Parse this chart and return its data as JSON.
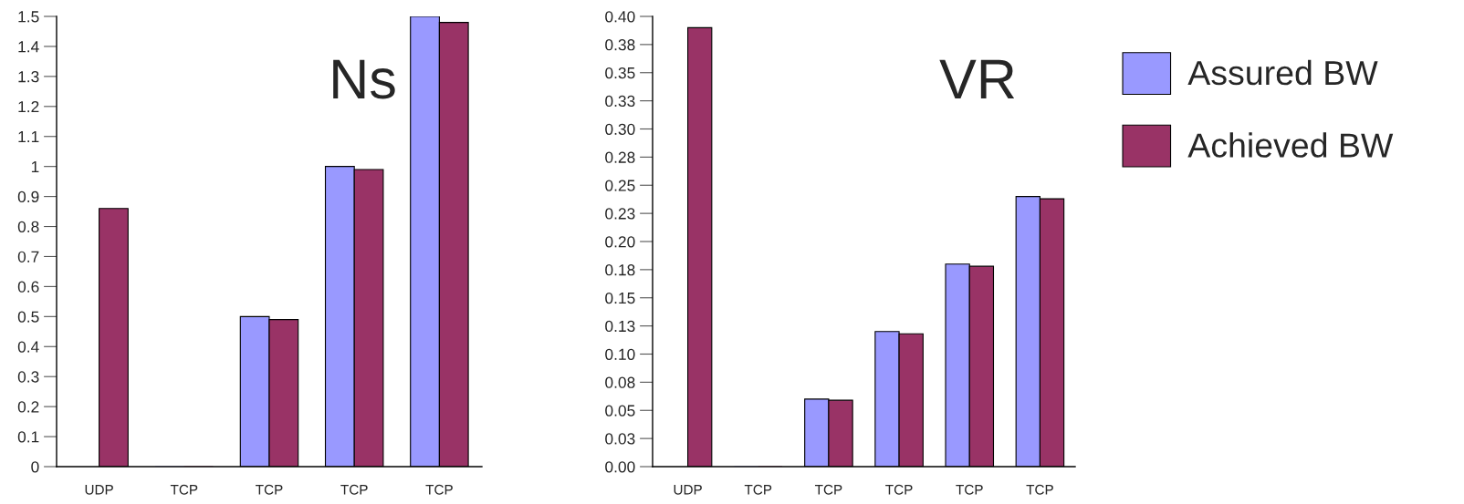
{
  "chart_data": [
    {
      "type": "bar",
      "title": "Ns",
      "categories": [
        "UDP",
        "TCP",
        "TCP",
        "TCP",
        "TCP"
      ],
      "series": [
        {
          "color": "#9999ff",
          "values": [
            null,
            0,
            0.5,
            1.0,
            1.5
          ]
        },
        {
          "color": "#993366",
          "values": [
            0.86,
            0,
            0.49,
            0.99,
            1.48
          ]
        }
      ],
      "ylim": [
        0,
        1.5
      ],
      "yticks": [
        0,
        0.1,
        0.2,
        0.3,
        0.4,
        0.5,
        0.6,
        0.7,
        0.8,
        0.9,
        1,
        1.1,
        1.2,
        1.3,
        1.4,
        1.5
      ],
      "grid": false,
      "legend": false
    },
    {
      "type": "bar",
      "title": "VR",
      "categories": [
        "UDP",
        "TCP",
        "TCP",
        "TCP",
        "TCP",
        "TCP"
      ],
      "series": [
        {
          "name": "Assured BW",
          "color": "#9999ff",
          "values": [
            null,
            0,
            0.06,
            0.12,
            0.18,
            0.24
          ]
        },
        {
          "name": "Achieved BW",
          "color": "#993366",
          "values": [
            0.39,
            0,
            0.059,
            0.118,
            0.178,
            0.238
          ]
        }
      ],
      "ylim": [
        0,
        0.4
      ],
      "yticks": [
        {
          "value": 0,
          "label": "0.00"
        },
        {
          "value": 0.025,
          "label": "0.03"
        },
        {
          "value": 0.05,
          "label": "0.05"
        },
        {
          "value": 0.075,
          "label": "0.08"
        },
        {
          "value": 0.1,
          "label": "0.10"
        },
        {
          "value": 0.125,
          "label": "0.13"
        },
        {
          "value": 0.15,
          "label": "0.15"
        },
        {
          "value": 0.175,
          "label": "0.18"
        },
        {
          "value": 0.2,
          "label": "0.20"
        },
        {
          "value": 0.225,
          "label": "0.23"
        },
        {
          "value": 0.25,
          "label": "0.25"
        },
        {
          "value": 0.275,
          "label": "0.28"
        },
        {
          "value": 0.3,
          "label": "0.30"
        },
        {
          "value": 0.325,
          "label": "0.33"
        },
        {
          "value": 0.35,
          "label": "0.35"
        },
        {
          "value": 0.375,
          "label": "0.38"
        },
        {
          "value": 0.4,
          "label": "0.40"
        }
      ],
      "grid": false,
      "legend": "right"
    }
  ]
}
